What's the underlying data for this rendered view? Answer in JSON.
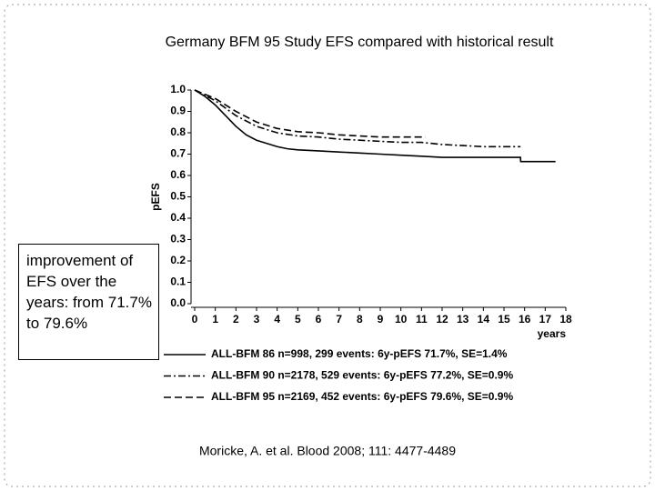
{
  "chart_data": {
    "type": "line",
    "title": "Germany BFM 95 Study EFS compared with historical result",
    "ylabel": "pEFS",
    "xlabel": "years",
    "annotation": "improvement of EFS over the years: from 71.7% to 79.6%",
    "citation": "Moricke, A. et al. Blood 2008; 111: 4477-4489",
    "xlim": [
      0,
      18
    ],
    "xticks": [
      0,
      1,
      2,
      3,
      4,
      5,
      6,
      7,
      8,
      9,
      10,
      11,
      12,
      13,
      14,
      15,
      16,
      17,
      18
    ],
    "ylim": [
      0,
      1
    ],
    "yticks": [
      {
        "value": 0,
        "label": "0.0"
      },
      0.1,
      0.2,
      0.3,
      0.4,
      0.5,
      0.6,
      0.7,
      0.8,
      0.9,
      {
        "value": 1,
        "label": "1.0"
      }
    ],
    "series": [
      {
        "name": "ALL-BFM 86  n=998,   299 events: 6y-pEFS 71.7%, SE=1.4%",
        "color": "#000000",
        "line_style": "solid",
        "x": [
          0,
          0.5,
          1,
          1.5,
          2,
          2.5,
          3,
          3.5,
          4,
          4.5,
          5,
          6,
          7,
          8,
          9,
          10,
          11,
          12,
          13,
          14,
          15,
          15.8,
          15.81,
          17.5
        ],
        "values": [
          1.0,
          0.97,
          0.93,
          0.88,
          0.83,
          0.79,
          0.765,
          0.75,
          0.735,
          0.725,
          0.72,
          0.715,
          0.71,
          0.705,
          0.7,
          0.695,
          0.69,
          0.685,
          0.685,
          0.685,
          0.685,
          0.685,
          0.665,
          0.665
        ]
      },
      {
        "name": "ALL-BFM 90  n=2178, 529 events: 6y-pEFS 77.2%, SE=0.9%",
        "color": "#000000",
        "line_style": "dashdot",
        "x": [
          0,
          1,
          2,
          3,
          4,
          5,
          6,
          7,
          8,
          9,
          10,
          11,
          12,
          13,
          14,
          15,
          15.8
        ],
        "values": [
          1.0,
          0.95,
          0.88,
          0.83,
          0.8,
          0.785,
          0.78,
          0.77,
          0.765,
          0.76,
          0.755,
          0.755,
          0.745,
          0.74,
          0.735,
          0.735,
          0.735
        ]
      },
      {
        "name": "ALL-BFM 95  n=2169, 452 events: 6y-pEFS 79.6%, SE=0.9%",
        "color": "#000000",
        "line_style": "dashed",
        "x": [
          0,
          1,
          2,
          3,
          4,
          5,
          6,
          7,
          8,
          9,
          10,
          11,
          11.2
        ],
        "values": [
          1.0,
          0.96,
          0.9,
          0.85,
          0.82,
          0.805,
          0.8,
          0.79,
          0.785,
          0.78,
          0.78,
          0.78,
          0.78
        ]
      }
    ]
  }
}
